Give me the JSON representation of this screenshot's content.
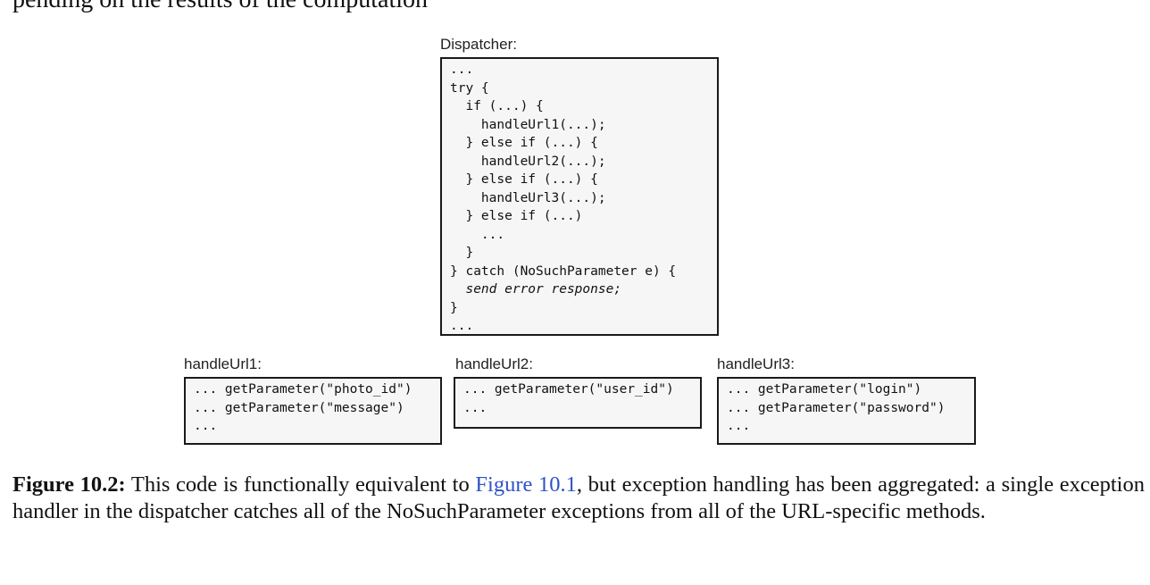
{
  "top_cut_text": "pending on the results of the computation",
  "dispatcher": {
    "label": "Dispatcher:",
    "lines": [
      "...",
      "try {",
      "  if (...) {",
      "    handleUrl1(...);",
      "  } else if (...) {",
      "    handleUrl2(...);",
      "  } else if (...) {",
      "    handleUrl3(...);",
      "  } else if (...)",
      "    ...",
      "  }",
      "} catch (NoSuchParameter e) {",
      "  send error response;",
      "}",
      "..."
    ]
  },
  "handlers": [
    {
      "label": "handleUrl1:",
      "lines": [
        "... getParameter(\"photo_id\")",
        "... getParameter(\"message\")",
        "..."
      ]
    },
    {
      "label": "handleUrl2:",
      "lines": [
        "... getParameter(\"user_id\")",
        "..."
      ]
    },
    {
      "label": "handleUrl3:",
      "lines": [
        "... getParameter(\"login\")",
        "... getParameter(\"password\")",
        "..."
      ]
    }
  ],
  "caption": {
    "label": "Figure 10.2:",
    "text_before": " This code is functionally equivalent to ",
    "link": "Figure 10.1",
    "text_after": ", but exception handling has been aggregated: a single exception handler in the dispatcher catches all of the NoSuchParameter exceptions from all of the URL-specific methods.",
    "link_color": "#2f52c8"
  }
}
